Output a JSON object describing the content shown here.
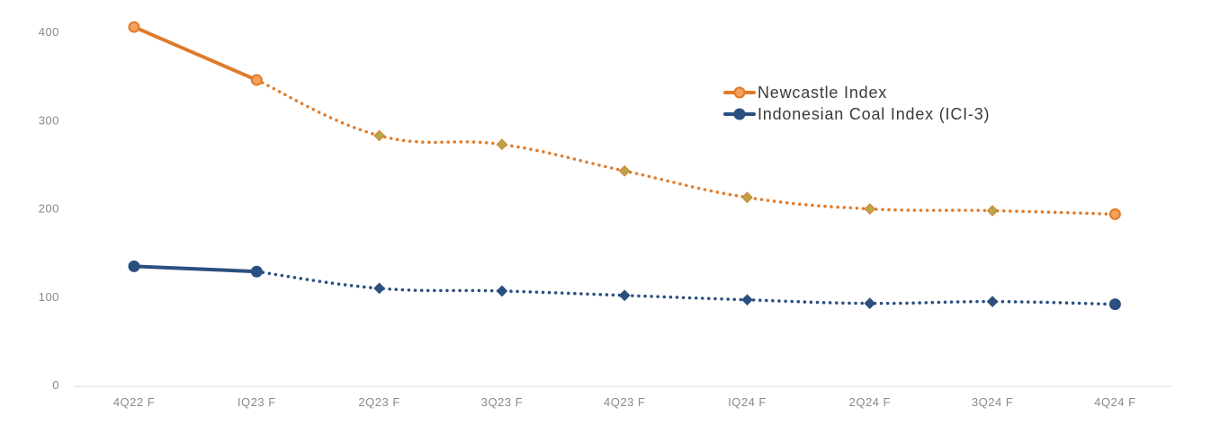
{
  "chart_data": {
    "type": "line",
    "title": "",
    "xlabel": "",
    "ylabel": "",
    "categories": [
      "4Q22 F",
      "IQ23 F",
      "2Q23 F",
      "3Q23 F",
      "4Q23 F",
      "IQ24 F",
      "2Q24 F",
      "3Q24 F",
      "4Q24 F"
    ],
    "ylim": [
      0,
      400
    ],
    "yticks": [
      "0",
      "100",
      "200",
      "300",
      "400"
    ],
    "grid": false,
    "legend_position": "top-right",
    "series": [
      {
        "name": "Newcastle Index",
        "color": "#e07b2a",
        "solid_until_index": 1,
        "values": [
          405,
          345,
          282,
          272,
          242,
          212,
          199,
          197,
          193
        ]
      },
      {
        "name": "Indonesian Coal Index (ICI-3)",
        "color": "#2b4f80",
        "solid_until_index": 1,
        "values": [
          134,
          128,
          109,
          106,
          101,
          96,
          92,
          94,
          91
        ]
      }
    ]
  }
}
